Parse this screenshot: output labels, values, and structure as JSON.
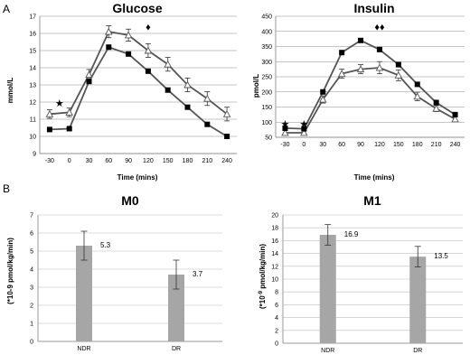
{
  "panel_labels": [
    "A",
    "B"
  ],
  "chart_data": [
    {
      "type": "line",
      "title": "Glucose",
      "xlabel": "Time (mins)",
      "ylabel": "mmol/L",
      "x": [
        -30,
        0,
        30,
        60,
        90,
        120,
        150,
        180,
        210,
        240
      ],
      "x_tick_labels": [
        "-30",
        "0",
        "30",
        "60",
        "90",
        "120",
        "150",
        "180",
        "210",
        "240"
      ],
      "ylim": [
        9,
        17
      ],
      "y_ticks": [
        9,
        10,
        11,
        12,
        13,
        14,
        15,
        16,
        17
      ],
      "series": [
        {
          "marker": "open-triangle",
          "color": "#555555",
          "values": [
            11.3,
            11.4,
            13.6,
            16.1,
            15.9,
            15.0,
            14.2,
            13.0,
            12.2,
            11.3
          ],
          "errors": [
            0.25,
            0.25,
            0.3,
            0.35,
            0.35,
            0.4,
            0.4,
            0.4,
            0.4,
            0.4
          ]
        },
        {
          "marker": "filled-square",
          "color": "#555555",
          "values": [
            10.4,
            10.45,
            13.2,
            15.2,
            14.8,
            13.8,
            12.7,
            11.7,
            10.7,
            10.0
          ],
          "errors": [
            0,
            0,
            0,
            0,
            0,
            0,
            0,
            0,
            0,
            0
          ]
        }
      ],
      "annotations": [
        {
          "text": "★",
          "x": -15,
          "y": 11.95
        },
        {
          "text": "♦",
          "x": 120,
          "y": 16.4
        }
      ]
    },
    {
      "type": "line",
      "title": "Insulin",
      "xlabel": "Time (mins)",
      "ylabel": "pmol/L",
      "x": [
        -30,
        0,
        30,
        60,
        90,
        120,
        150,
        180,
        210,
        240
      ],
      "x_tick_labels": [
        "-30",
        "0",
        "30",
        "60",
        "90",
        "120",
        "150",
        "180",
        "210",
        "240"
      ],
      "ylim": [
        50,
        450
      ],
      "y_ticks": [
        50,
        100,
        150,
        200,
        250,
        300,
        350,
        400,
        450
      ],
      "series": [
        {
          "marker": "open-triangle",
          "color": "#555555",
          "values": [
            65,
            65,
            175,
            260,
            275,
            280,
            255,
            185,
            145,
            110
          ],
          "errors": [
            8,
            8,
            12,
            15,
            15,
            20,
            18,
            14,
            10,
            8
          ]
        },
        {
          "marker": "filled-square",
          "color": "#555555",
          "values": [
            80,
            78,
            200,
            330,
            370,
            340,
            290,
            225,
            165,
            125
          ],
          "errors": [
            0,
            0,
            0,
            0,
            6,
            6,
            0,
            0,
            0,
            0
          ]
        }
      ],
      "annotations": [
        {
          "text": "★",
          "x": -30,
          "y": 95
        },
        {
          "text": "★",
          "x": 0,
          "y": 95
        },
        {
          "text": "♦♦",
          "x": 120,
          "y": 415
        }
      ]
    },
    {
      "type": "bar",
      "title": "M0",
      "ylabel": "(*10-9 pmol/kg/min)",
      "categories": [
        "NDR",
        "DR"
      ],
      "values": [
        5.3,
        3.7
      ],
      "errors": [
        0.8,
        0.8
      ],
      "data_labels": [
        "5.3",
        "3.7"
      ],
      "ylim": [
        0,
        7
      ],
      "y_ticks": [
        0,
        1,
        2,
        3,
        4,
        5,
        6,
        7
      ],
      "color": "#a6a6a6"
    },
    {
      "type": "bar",
      "title": "M1",
      "ylabel": "(*10",
      "ylabel_sup": "-9",
      "ylabel_rest": " pmol/kg/min)",
      "categories": [
        "NDR",
        "DR"
      ],
      "values": [
        16.9,
        13.5
      ],
      "errors": [
        1.6,
        1.6
      ],
      "data_labels": [
        "16.9",
        "13.5"
      ],
      "ylim": [
        0,
        20
      ],
      "y_ticks": [
        0,
        2,
        4,
        6,
        8,
        10,
        12,
        14,
        16,
        18,
        20
      ],
      "color": "#a6a6a6"
    }
  ]
}
